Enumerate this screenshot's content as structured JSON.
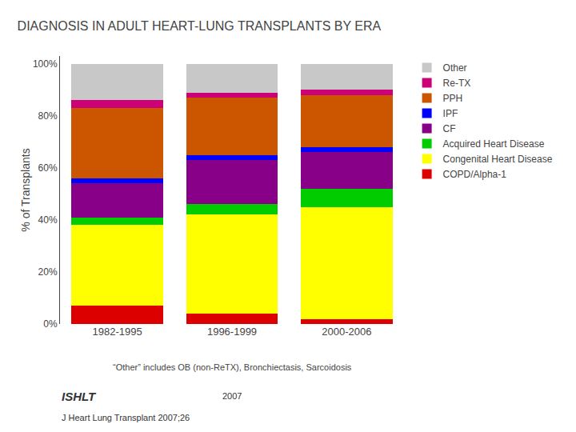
{
  "chart_data": {
    "type": "bar",
    "stacked": true,
    "title": "DIAGNOSIS IN ADULT HEART-LUNG TRANSPLANTS BY ERA",
    "subtitle": "“Other” includes OB (non-ReTX), Bronchiectasis, Sarcoidosis",
    "ylabel": "% of Transplants",
    "categories": [
      "1982-1995",
      "1996-1999",
      "2000-2006"
    ],
    "series": [
      {
        "name": "COPD/Alpha-1",
        "color": "#dd0000",
        "values": [
          7,
          4,
          2
        ]
      },
      {
        "name": "Congenital Heart Disease",
        "color": "#ffff00",
        "values": [
          31,
          38,
          43
        ]
      },
      {
        "name": "Acquired Heart Disease",
        "color": "#00cc00",
        "values": [
          3,
          4,
          7
        ]
      },
      {
        "name": "CF",
        "color": "#880088",
        "values": [
          13,
          17,
          14
        ]
      },
      {
        "name": "IPF",
        "color": "#0000ff",
        "values": [
          2,
          2,
          2
        ]
      },
      {
        "name": "PPH",
        "color": "#cc5500",
        "values": [
          27,
          22,
          20
        ]
      },
      {
        "name": "Re-TX",
        "color": "#cc0077",
        "values": [
          3,
          2,
          2
        ]
      },
      {
        "name": "Other",
        "color": "#c8c8c8",
        "values": [
          14,
          11,
          10
        ]
      }
    ],
    "ylim": [
      0,
      103
    ],
    "yticks": [
      {
        "value": 0,
        "label": "0%"
      },
      {
        "value": 20,
        "label": "20%"
      },
      {
        "value": 40,
        "label": "40%"
      },
      {
        "value": 60,
        "label": "60%"
      },
      {
        "value": 80,
        "label": "80%"
      },
      {
        "value": 100,
        "label": "100%"
      }
    ],
    "grid": false,
    "legend": "upper right",
    "annotations": [
      "ISHLT",
      "2007",
      "J Heart Lung Transplant 2007;26"
    ]
  }
}
